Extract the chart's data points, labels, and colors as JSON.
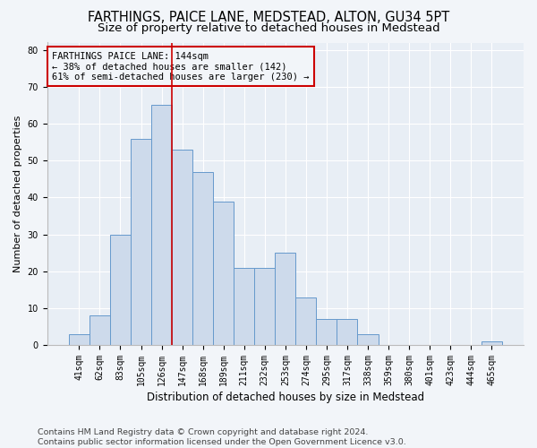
{
  "title": "FARTHINGS, PAICE LANE, MEDSTEAD, ALTON, GU34 5PT",
  "subtitle": "Size of property relative to detached houses in Medstead",
  "xlabel": "Distribution of detached houses by size in Medstead",
  "ylabel": "Number of detached properties",
  "categories": [
    "41sqm",
    "62sqm",
    "83sqm",
    "105sqm",
    "126sqm",
    "147sqm",
    "168sqm",
    "189sqm",
    "211sqm",
    "232sqm",
    "253sqm",
    "274sqm",
    "295sqm",
    "317sqm",
    "338sqm",
    "359sqm",
    "380sqm",
    "401sqm",
    "423sqm",
    "444sqm",
    "465sqm"
  ],
  "values": [
    3,
    8,
    30,
    56,
    65,
    53,
    47,
    39,
    21,
    21,
    25,
    13,
    7,
    7,
    3,
    0,
    0,
    0,
    0,
    0,
    1
  ],
  "bar_color": "#cddaeb",
  "bar_edgecolor": "#6699cc",
  "vline_color": "#cc0000",
  "annotation_text": "FARTHINGS PAICE LANE: 144sqm\n← 38% of detached houses are smaller (142)\n61% of semi-detached houses are larger (230) →",
  "annotation_box_edgecolor": "#cc0000",
  "ylim": [
    0,
    82
  ],
  "yticks": [
    0,
    10,
    20,
    30,
    40,
    50,
    60,
    70,
    80
  ],
  "footer": "Contains HM Land Registry data © Crown copyright and database right 2024.\nContains public sector information licensed under the Open Government Licence v3.0.",
  "bg_color": "#f2f5f9",
  "plot_bg_color": "#e8eef5",
  "grid_color": "#ffffff",
  "title_fontsize": 10.5,
  "subtitle_fontsize": 9.5,
  "xlabel_fontsize": 8.5,
  "ylabel_fontsize": 8,
  "tick_fontsize": 7,
  "annot_fontsize": 7.5,
  "footer_fontsize": 6.8
}
